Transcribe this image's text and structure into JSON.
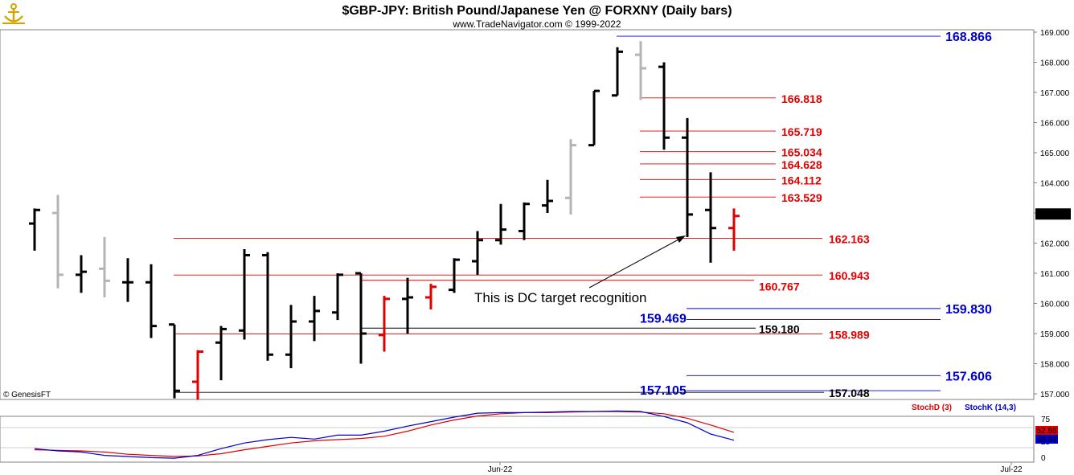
{
  "header": {
    "title": "$GBP-JPY:  British Pound/Japanese Yen @ FORXNY  (Daily bars)",
    "subtitle": "www.TradeNavigator.com © 1999-2022",
    "watermark": "© GenesisFT",
    "logo_icon": "anchor-logo-icon"
  },
  "annotation": "This is DC target recognition",
  "colors": {
    "black": "#000000",
    "gray": "#b4b4b4",
    "red": "#e00000",
    "blue": "#0000cc",
    "price_label_bg": "#000000"
  },
  "chart_data": {
    "type": "ohlc",
    "ylim": [
      156.9,
      169.2
    ],
    "yticks": [
      "169.000",
      "168.000",
      "167.000",
      "166.000",
      "165.000",
      "164.000",
      "163.000",
      "162.000",
      "161.000",
      "160.000",
      "159.000",
      "158.000",
      "157.000"
    ],
    "last_price": "162.967",
    "xticks": [
      "Jun-22",
      "Jul-22"
    ],
    "bars": [
      {
        "o": 162.65,
        "h": 163.15,
        "l": 161.75,
        "c": 163.1,
        "color": "black"
      },
      {
        "o": 163.0,
        "h": 163.6,
        "l": 160.5,
        "c": 160.95,
        "color": "gray"
      },
      {
        "o": 160.95,
        "h": 161.6,
        "l": 160.35,
        "c": 161.05,
        "color": "black"
      },
      {
        "o": 161.15,
        "h": 162.2,
        "l": 160.2,
        "c": 160.75,
        "color": "gray"
      },
      {
        "o": 160.7,
        "h": 161.5,
        "l": 160.05,
        "c": 160.7,
        "color": "black"
      },
      {
        "o": 160.7,
        "h": 161.3,
        "l": 158.85,
        "c": 159.25,
        "color": "black"
      },
      {
        "o": 159.3,
        "h": 159.3,
        "l": 156.85,
        "c": 157.1,
        "color": "black"
      },
      {
        "o": 157.4,
        "h": 158.45,
        "l": 156.8,
        "c": 158.4,
        "color": "red"
      },
      {
        "o": 158.7,
        "h": 159.25,
        "l": 157.45,
        "c": 159.15,
        "color": "black"
      },
      {
        "o": 159.1,
        "h": 161.8,
        "l": 158.8,
        "c": 161.6,
        "color": "black"
      },
      {
        "o": 161.6,
        "h": 161.7,
        "l": 158.1,
        "c": 158.3,
        "color": "black"
      },
      {
        "o": 158.3,
        "h": 159.95,
        "l": 157.85,
        "c": 159.4,
        "color": "black"
      },
      {
        "o": 159.4,
        "h": 160.25,
        "l": 158.75,
        "c": 159.75,
        "color": "black"
      },
      {
        "o": 159.7,
        "h": 161.0,
        "l": 159.45,
        "c": 160.95,
        "color": "black"
      },
      {
        "o": 161.0,
        "h": 161.0,
        "l": 158.0,
        "c": 159.0,
        "color": "black"
      },
      {
        "o": 158.95,
        "h": 160.25,
        "l": 158.4,
        "c": 160.15,
        "color": "red"
      },
      {
        "o": 160.15,
        "h": 160.85,
        "l": 159.0,
        "c": 160.2,
        "color": "black"
      },
      {
        "o": 160.2,
        "h": 160.65,
        "l": 159.8,
        "c": 160.55,
        "color": "red"
      },
      {
        "o": 160.45,
        "h": 161.5,
        "l": 160.35,
        "c": 161.45,
        "color": "black"
      },
      {
        "o": 161.4,
        "h": 162.4,
        "l": 160.95,
        "c": 162.1,
        "color": "black"
      },
      {
        "o": 162.1,
        "h": 163.3,
        "l": 161.95,
        "c": 162.45,
        "color": "black"
      },
      {
        "o": 162.4,
        "h": 163.35,
        "l": 162.1,
        "c": 163.3,
        "color": "black"
      },
      {
        "o": 163.25,
        "h": 164.1,
        "l": 163.0,
        "c": 163.4,
        "color": "black"
      },
      {
        "o": 163.5,
        "h": 165.45,
        "l": 162.95,
        "c": 165.25,
        "color": "gray"
      },
      {
        "o": 165.25,
        "h": 167.05,
        "l": 165.25,
        "c": 167.05,
        "color": "black"
      },
      {
        "o": 166.9,
        "h": 168.5,
        "l": 166.9,
        "c": 168.35,
        "color": "black"
      },
      {
        "o": 168.25,
        "h": 168.7,
        "l": 166.75,
        "c": 167.8,
        "color": "gray"
      },
      {
        "o": 167.85,
        "h": 168.0,
        "l": 165.1,
        "c": 165.5,
        "color": "black"
      },
      {
        "o": 165.5,
        "h": 166.15,
        "l": 162.2,
        "c": 162.95,
        "color": "black"
      },
      {
        "o": 163.1,
        "h": 164.35,
        "l": 161.35,
        "c": 162.5,
        "color": "black"
      },
      {
        "o": 162.5,
        "h": 163.15,
        "l": 161.75,
        "c": 162.9,
        "color": "red"
      }
    ],
    "levels": [
      {
        "value": 168.866,
        "label": "168.866",
        "color": "blue",
        "size": "large"
      },
      {
        "value": 166.818,
        "label": "166.818",
        "color": "red",
        "size": "medium"
      },
      {
        "value": 165.719,
        "label": "165.719",
        "color": "red",
        "size": "medium"
      },
      {
        "value": 165.034,
        "label": "165.034",
        "color": "red",
        "size": "medium"
      },
      {
        "value": 164.628,
        "label": "164.628",
        "color": "red",
        "size": "medium"
      },
      {
        "value": 164.112,
        "label": "164.112",
        "color": "red",
        "size": "medium"
      },
      {
        "value": 163.529,
        "label": "163.529",
        "color": "red",
        "size": "medium"
      },
      {
        "value": 162.163,
        "label": "162.163",
        "color": "red",
        "size": "medium"
      },
      {
        "value": 160.943,
        "label": "160.943",
        "color": "red",
        "size": "medium"
      },
      {
        "value": 160.767,
        "label": "160.767",
        "color": "red",
        "size": "medium"
      },
      {
        "value": 159.83,
        "label": "159.830",
        "color": "blue",
        "size": "large"
      },
      {
        "value": 159.469,
        "label": "159.469",
        "color": "blue",
        "size": "large"
      },
      {
        "value": 159.18,
        "label": "159.180",
        "color": "black",
        "size": "medium"
      },
      {
        "value": 158.989,
        "label": "158.989",
        "color": "red",
        "size": "medium"
      },
      {
        "value": 157.606,
        "label": "157.606",
        "color": "blue",
        "size": "large"
      },
      {
        "value": 157.105,
        "label": "157.105",
        "color": "blue",
        "size": "large"
      },
      {
        "value": 157.048,
        "label": "157.048",
        "color": "black",
        "size": "medium"
      }
    ],
    "stochastic": {
      "legend_d": "StochD (3)",
      "legend_k": "StochK (14,3)",
      "yticks": [
        "75",
        "25",
        "0"
      ],
      "last_d": "52.86",
      "last_k": "38.96",
      "stochD": [
        22,
        21,
        20,
        18,
        14,
        12,
        10,
        11,
        15,
        22,
        28,
        34,
        38,
        40,
        42,
        46,
        55,
        66,
        75,
        82,
        86,
        88,
        88,
        89,
        90,
        90,
        89,
        86,
        78,
        66,
        53
      ],
      "stochK": [
        24,
        20,
        18,
        12,
        10,
        8,
        7,
        12,
        24,
        34,
        40,
        44,
        41,
        48,
        48,
        55,
        64,
        72,
        80,
        87,
        88,
        88,
        89,
        90,
        90,
        91,
        90,
        81,
        70,
        50,
        39
      ]
    }
  }
}
